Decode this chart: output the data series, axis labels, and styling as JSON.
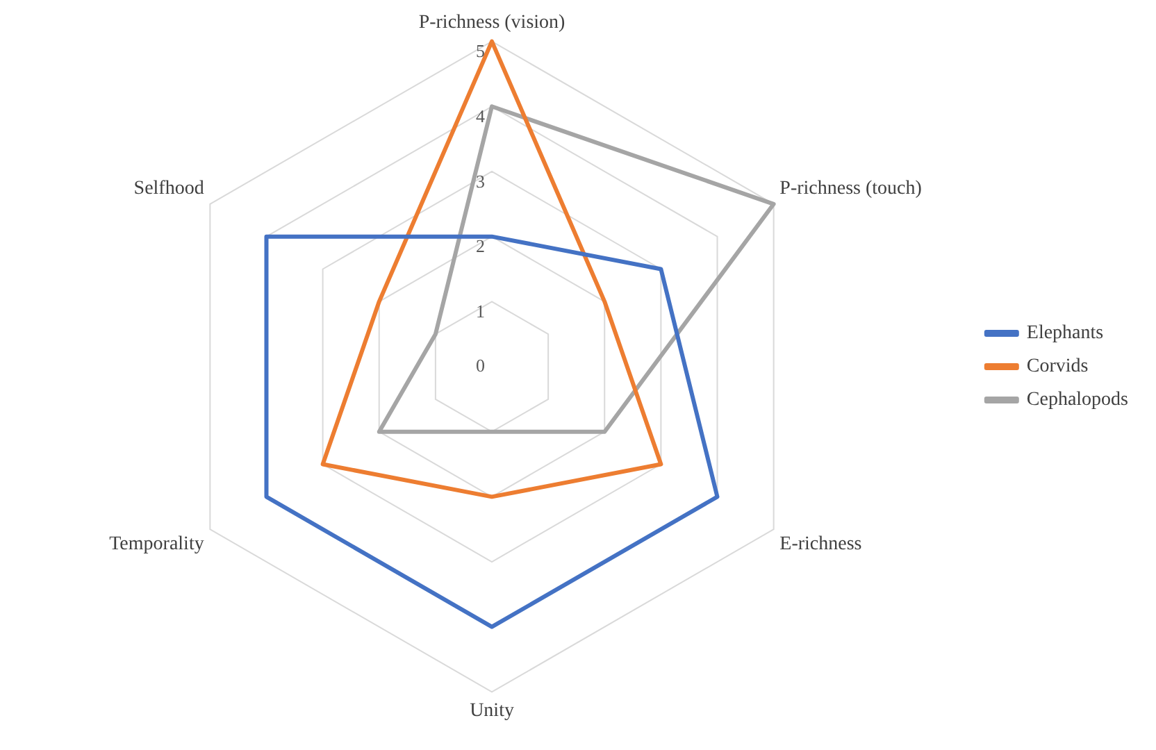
{
  "chart_data": {
    "type": "radar",
    "categories": [
      "P-richness (vision)",
      "P-richness (touch)",
      "E-richness",
      "Unity",
      "Temporality",
      "Selfhood"
    ],
    "series": [
      {
        "name": "Elephants",
        "color": "#4472c4",
        "values": [
          2,
          3,
          4,
          4,
          4,
          4
        ]
      },
      {
        "name": "Corvids",
        "color": "#ed7d31",
        "values": [
          5,
          2,
          3,
          2,
          3,
          2
        ]
      },
      {
        "name": "Cephalopods",
        "color": "#a5a5a5",
        "values": [
          4,
          5,
          2,
          1,
          2,
          1
        ]
      }
    ],
    "ylim": [
      0,
      5
    ],
    "yticks": [
      0,
      1,
      2,
      3,
      4,
      5
    ],
    "grid": true,
    "legend": "right",
    "marker": "none"
  }
}
